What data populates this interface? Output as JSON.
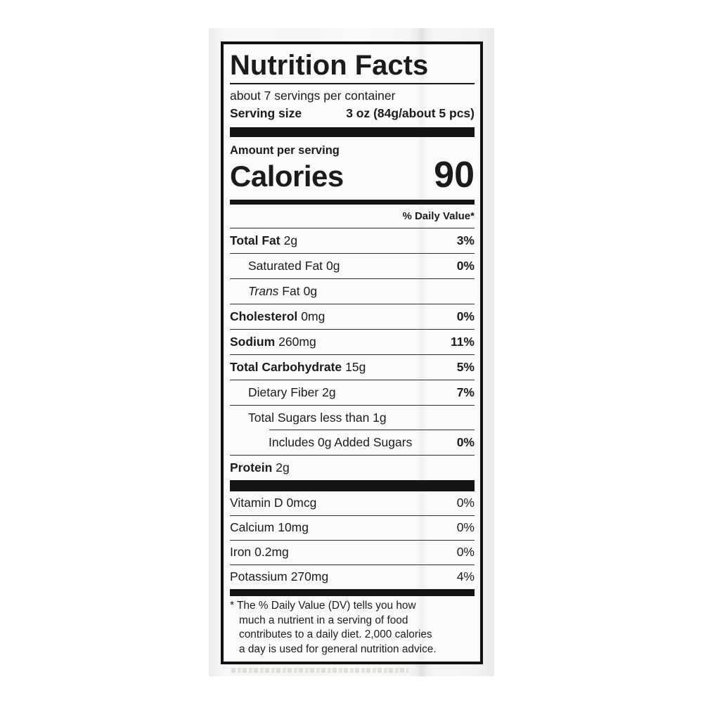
{
  "label": {
    "title": "Nutrition Facts",
    "servings_per_container": "about 7 servings per container",
    "serving_size": {
      "label": "Serving size",
      "value": "3 oz (84g/about 5 pcs)"
    },
    "amount_per_serving": "Amount per serving",
    "calories": {
      "label": "Calories",
      "value": "90"
    },
    "daily_value_header": "% Daily Value*",
    "nutrients": [
      {
        "name": "Total Fat",
        "amount": "2g",
        "dv": "3%",
        "bold": true,
        "indent": 0
      },
      {
        "name": "Saturated Fat",
        "amount": "0g",
        "dv": "0%",
        "bold": false,
        "indent": 1
      },
      {
        "name": "Trans Fat",
        "amount": "0g",
        "dv": "",
        "bold": false,
        "indent": 1,
        "italic_word": "Trans"
      },
      {
        "name": "Cholesterol",
        "amount": "0mg",
        "dv": "0%",
        "bold": true,
        "indent": 0
      },
      {
        "name": "Sodium",
        "amount": "260mg",
        "dv": "11%",
        "bold": true,
        "indent": 0
      },
      {
        "name": "Total Carbohydrate",
        "amount": "15g",
        "dv": "5%",
        "bold": true,
        "indent": 0
      },
      {
        "name": "Dietary Fiber",
        "amount": "2g",
        "dv": "7%",
        "bold": false,
        "indent": 1
      },
      {
        "name": "Total Sugars",
        "amount": "less than 1g",
        "dv": "",
        "bold": false,
        "indent": 1,
        "separator_below": "indented"
      },
      {
        "name": "Includes 0g Added Sugars",
        "amount": "",
        "dv": "0%",
        "bold": false,
        "indent": 2
      },
      {
        "name": "Protein",
        "amount": "2g",
        "dv": "",
        "bold": true,
        "indent": 0
      }
    ],
    "micronutrients": [
      {
        "name": "Vitamin D",
        "amount": "0mcg",
        "dv": "0%"
      },
      {
        "name": "Calcium",
        "amount": "10mg",
        "dv": "0%"
      },
      {
        "name": "Iron",
        "amount": "0.2mg",
        "dv": "0%"
      },
      {
        "name": "Potassium",
        "amount": "270mg",
        "dv": "4%"
      }
    ],
    "footnote_lines": [
      "* The % Daily Value (DV) tells you how",
      "much a nutrient in a serving of food",
      "contributes to a daily diet. 2,000 calories",
      "a day is used for general nutrition advice."
    ],
    "colors": {
      "text": "#1b1b1b",
      "label_background": "#fbfbf9",
      "package_background": "#f4f4f2",
      "bar": "#141414"
    }
  }
}
